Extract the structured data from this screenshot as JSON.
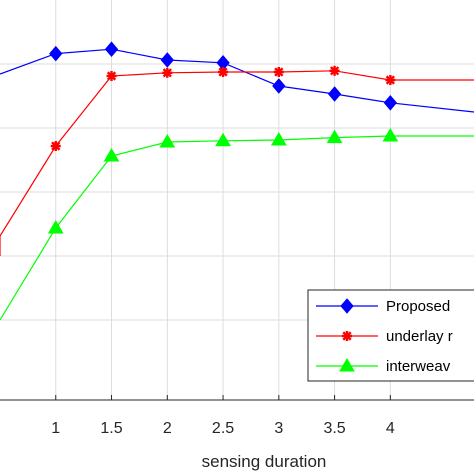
{
  "chart_data": {
    "type": "line",
    "xlabel": "sensing duration",
    "ylabel": "",
    "title": "",
    "xlim": [
      0.5,
      4.75
    ],
    "ylim": [
      0,
      1
    ],
    "grid": true,
    "x_ticks": [
      "1",
      "1.5",
      "2",
      "2.5",
      "3",
      "3.5",
      "4"
    ],
    "legend_position": "lower-right",
    "series": [
      {
        "name": "Proposed",
        "color": "#0000ff",
        "marker": "diamond",
        "x": [
          0.5,
          1,
          1.5,
          2,
          2.5,
          3,
          3.5,
          4,
          4.75
        ],
        "y": [
          0.815,
          0.866,
          0.877,
          0.85,
          0.843,
          0.785,
          0.765,
          0.743,
          0.72
        ]
      },
      {
        "name": "underlay r",
        "color": "#ff0000",
        "marker": "star",
        "x": [
          0.5,
          0.5,
          1,
          1.5,
          2,
          2.5,
          3,
          3.5,
          4,
          4.75
        ],
        "y": [
          0.36,
          0.41,
          0.635,
          0.81,
          0.818,
          0.82,
          0.82,
          0.823,
          0.8,
          0.8
        ]
      },
      {
        "name": "interweav",
        "color": "#00ff00",
        "marker": "triangle",
        "x": [
          0.5,
          1,
          1.5,
          2,
          2.5,
          3,
          3.5,
          4,
          4.75
        ],
        "y": [
          0.2,
          0.43,
          0.61,
          0.645,
          0.648,
          0.65,
          0.656,
          0.66,
          0.66
        ]
      }
    ]
  }
}
